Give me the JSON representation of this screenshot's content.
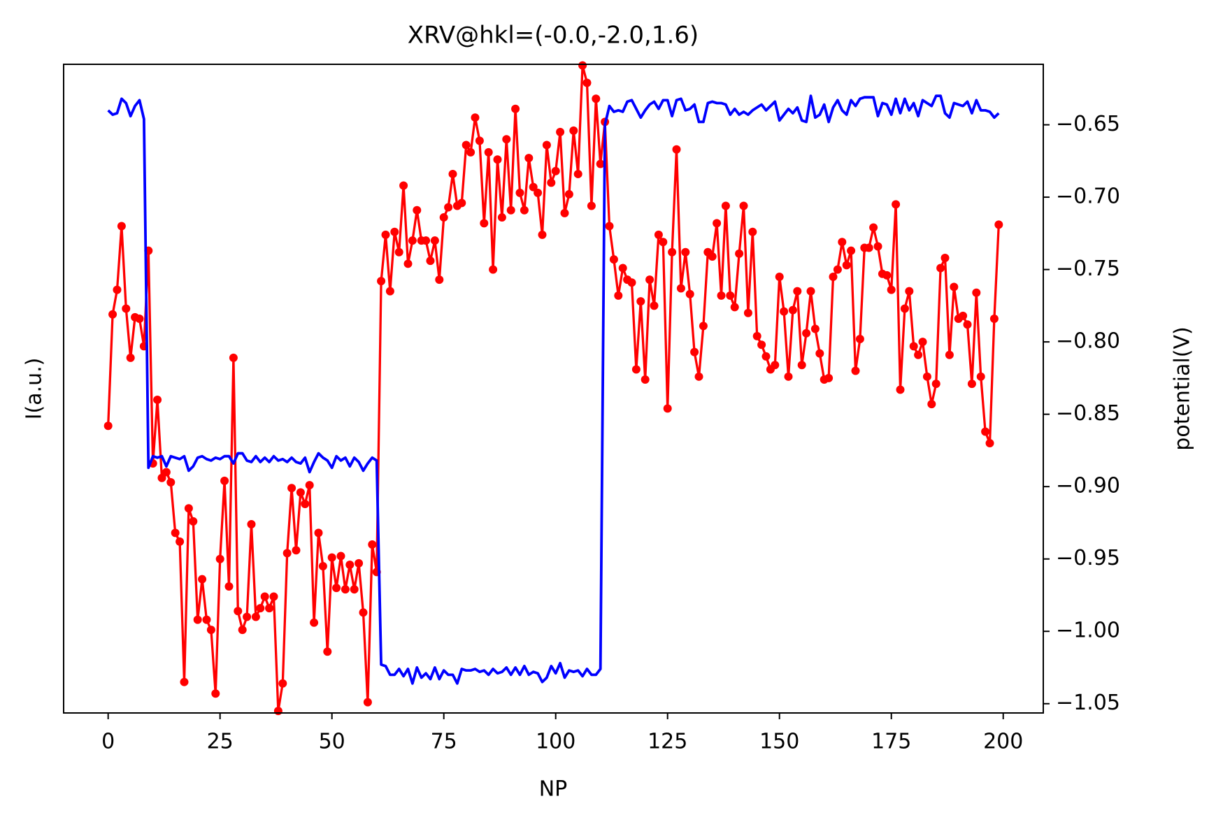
{
  "chart_data": {
    "type": "line",
    "title": "XRV@hkl=(-0.0,-2.0,1.6)",
    "xlabel": "NP",
    "ylabel": "I(a.u.)",
    "y2label": "potential(V)",
    "x": [
      0,
      1,
      2,
      3,
      4,
      5,
      6,
      7,
      8,
      9,
      10,
      11,
      12,
      13,
      14,
      15,
      16,
      17,
      18,
      19,
      20,
      21,
      22,
      23,
      24,
      25,
      26,
      27,
      28,
      29,
      30,
      31,
      32,
      33,
      34,
      35,
      36,
      37,
      38,
      39,
      40,
      41,
      42,
      43,
      44,
      45,
      46,
      47,
      48,
      49,
      50,
      51,
      52,
      53,
      54,
      55,
      56,
      57,
      58,
      59,
      60,
      61,
      62,
      63,
      64,
      65,
      66,
      67,
      68,
      69,
      70,
      71,
      72,
      73,
      74,
      75,
      76,
      77,
      78,
      79,
      80,
      81,
      82,
      83,
      84,
      85,
      86,
      87,
      88,
      89,
      90,
      91,
      92,
      93,
      94,
      95,
      96,
      97,
      98,
      99,
      100,
      101,
      102,
      103,
      104,
      105,
      106,
      107,
      108,
      109,
      110,
      111,
      112,
      113,
      114,
      115,
      116,
      117,
      118,
      119,
      120,
      121,
      122,
      123,
      124,
      125,
      126,
      127,
      128,
      129,
      130,
      131,
      132,
      133,
      134,
      135,
      136,
      137,
      138,
      139,
      140,
      141,
      142,
      143,
      144,
      145,
      146,
      147,
      148,
      149,
      150,
      151,
      152,
      153,
      154,
      155,
      156,
      157,
      158,
      159,
      160,
      161,
      162,
      163,
      164,
      165,
      166,
      167,
      168,
      169,
      170,
      171,
      172,
      173,
      174,
      175,
      176,
      177,
      178,
      179,
      180,
      181,
      182,
      183,
      184,
      185,
      186,
      187,
      188,
      189,
      190,
      191,
      192,
      193,
      194,
      195,
      196,
      197,
      198,
      199
    ],
    "series": [
      {
        "color": "#ff0000",
        "axis": "y",
        "markers": true,
        "values": [
          -0.858,
          -0.781,
          -0.764,
          -0.72,
          -0.777,
          -0.811,
          -0.783,
          -0.784,
          -0.803,
          -0.737,
          -0.884,
          -0.84,
          -0.894,
          -0.89,
          -0.897,
          -0.932,
          -0.938,
          -1.035,
          -0.915,
          -0.924,
          -0.992,
          -0.964,
          -0.992,
          -0.999,
          -1.043,
          -0.95,
          -0.896,
          -0.969,
          -0.811,
          -0.986,
          -0.999,
          -0.99,
          -0.926,
          -0.99,
          -0.984,
          -0.976,
          -0.984,
          -0.976,
          -1.055,
          -1.036,
          -0.946,
          -0.901,
          -0.944,
          -0.904,
          -0.912,
          -0.899,
          -0.994,
          -0.932,
          -0.955,
          -1.014,
          -0.949,
          -0.97,
          -0.948,
          -0.971,
          -0.954,
          -0.971,
          -0.953,
          -0.987,
          -1.049,
          -0.94,
          -0.959,
          -0.758,
          -0.726,
          -0.765,
          -0.724,
          -0.738,
          -0.692,
          -0.746,
          -0.73,
          -0.709,
          -0.73,
          -0.73,
          -0.744,
          -0.73,
          -0.757,
          -0.714,
          -0.707,
          -0.684,
          -0.706,
          -0.704,
          -0.664,
          -0.669,
          -0.645,
          -0.661,
          -0.718,
          -0.669,
          -0.75,
          -0.674,
          -0.714,
          -0.66,
          -0.709,
          -0.639,
          -0.697,
          -0.709,
          -0.673,
          -0.693,
          -0.697,
          -0.726,
          -0.664,
          -0.69,
          -0.682,
          -0.655,
          -0.711,
          -0.698,
          -0.654,
          -0.684,
          -0.609,
          -0.621,
          -0.706,
          -0.632,
          -0.677,
          -0.648,
          -0.72,
          -0.743,
          -0.768,
          -0.749,
          -0.757,
          -0.759,
          -0.819,
          -0.772,
          -0.826,
          -0.757,
          -0.775,
          -0.726,
          -0.731,
          -0.846,
          -0.738,
          -0.667,
          -0.763,
          -0.738,
          -0.767,
          -0.807,
          -0.824,
          -0.789,
          -0.738,
          -0.741,
          -0.718,
          -0.768,
          -0.706,
          -0.768,
          -0.776,
          -0.739,
          -0.706,
          -0.78,
          -0.724,
          -0.796,
          -0.802,
          -0.81,
          -0.819,
          -0.816,
          -0.755,
          -0.779,
          -0.824,
          -0.778,
          -0.765,
          -0.816,
          -0.794,
          -0.765,
          -0.791,
          -0.808,
          -0.826,
          -0.825,
          -0.755,
          -0.75,
          -0.731,
          -0.747,
          -0.737,
          -0.82,
          -0.798,
          -0.735,
          -0.735,
          -0.721,
          -0.734,
          -0.753,
          -0.754,
          -0.764,
          -0.705,
          -0.833,
          -0.777,
          -0.765,
          -0.803,
          -0.809,
          -0.8,
          -0.824,
          -0.843,
          -0.829,
          -0.749,
          -0.742,
          -0.809,
          -0.762,
          -0.784,
          -0.782,
          -0.788,
          -0.829,
          -0.766,
          -0.824,
          -0.862,
          -0.87,
          -0.784,
          -0.719
        ]
      },
      {
        "color": "#0000ff",
        "axis": "y2",
        "markers": false,
        "values": [
          -0.64,
          -0.643,
          -0.642,
          -0.632,
          -0.635,
          -0.644,
          -0.637,
          -0.633,
          -0.646,
          -0.887,
          -0.879,
          -0.88,
          -0.879,
          -0.886,
          -0.879,
          -0.88,
          -0.881,
          -0.879,
          -0.889,
          -0.886,
          -0.88,
          -0.879,
          -0.881,
          -0.882,
          -0.88,
          -0.881,
          -0.879,
          -0.879,
          -0.884,
          -0.877,
          -0.877,
          -0.882,
          -0.883,
          -0.879,
          -0.883,
          -0.88,
          -0.883,
          -0.879,
          -0.882,
          -0.881,
          -0.883,
          -0.88,
          -0.883,
          -0.884,
          -0.88,
          -0.89,
          -0.883,
          -0.877,
          -0.88,
          -0.882,
          -0.887,
          -0.879,
          -0.882,
          -0.88,
          -0.886,
          -0.88,
          -0.883,
          -0.889,
          -0.884,
          -0.88,
          -0.882,
          -1.023,
          -1.024,
          -1.03,
          -1.03,
          -1.026,
          -1.031,
          -1.026,
          -1.036,
          -1.025,
          -1.032,
          -1.029,
          -1.033,
          -1.025,
          -1.033,
          -1.027,
          -1.03,
          -1.03,
          -1.036,
          -1.026,
          -1.027,
          -1.027,
          -1.026,
          -1.028,
          -1.027,
          -1.03,
          -1.026,
          -1.029,
          -1.028,
          -1.025,
          -1.03,
          -1.025,
          -1.03,
          -1.024,
          -1.03,
          -1.028,
          -1.029,
          -1.035,
          -1.032,
          -1.024,
          -1.029,
          -1.022,
          -1.032,
          -1.027,
          -1.028,
          -1.027,
          -1.031,
          -1.026,
          -1.03,
          -1.03,
          -1.026,
          -0.65,
          -0.637,
          -0.641,
          -0.64,
          -0.641,
          -0.634,
          -0.633,
          -0.639,
          -0.645,
          -0.64,
          -0.636,
          -0.634,
          -0.639,
          -0.633,
          -0.633,
          -0.644,
          -0.633,
          -0.632,
          -0.64,
          -0.639,
          -0.636,
          -0.648,
          -0.648,
          -0.635,
          -0.634,
          -0.635,
          -0.635,
          -0.636,
          -0.643,
          -0.639,
          -0.643,
          -0.641,
          -0.643,
          -0.64,
          -0.638,
          -0.636,
          -0.64,
          -0.637,
          -0.634,
          -0.647,
          -0.643,
          -0.639,
          -0.642,
          -0.638,
          -0.647,
          -0.648,
          -0.63,
          -0.645,
          -0.643,
          -0.636,
          -0.648,
          -0.638,
          -0.633,
          -0.64,
          -0.643,
          -0.633,
          -0.637,
          -0.632,
          -0.631,
          -0.631,
          -0.631,
          -0.644,
          -0.635,
          -0.636,
          -0.643,
          -0.632,
          -0.642,
          -0.632,
          -0.64,
          -0.635,
          -0.644,
          -0.633,
          -0.635,
          -0.637,
          -0.63,
          -0.63,
          -0.642,
          -0.645,
          -0.635,
          -0.636,
          -0.637,
          -0.634,
          -0.642,
          -0.633,
          -0.64,
          -0.64,
          -0.641,
          -0.645,
          -0.642
        ]
      }
    ],
    "xlim": [
      -9.95,
      208.95
    ],
    "xticks": [
      0,
      25,
      50,
      75,
      100,
      125,
      150,
      175,
      200
    ],
    "ylim": [
      -1.0564,
      -0.6082
    ],
    "y2lim": [
      -1.0564,
      -0.6082
    ],
    "y2ticks": [
      {
        "value": -0.65,
        "label": "−0.65"
      },
      {
        "value": -0.7,
        "label": "−0.70"
      },
      {
        "value": -0.75,
        "label": "−0.75"
      },
      {
        "value": -0.8,
        "label": "−0.80"
      },
      {
        "value": -0.85,
        "label": "−0.85"
      },
      {
        "value": -0.9,
        "label": "−0.90"
      },
      {
        "value": -0.95,
        "label": "−0.95"
      },
      {
        "value": -1.0,
        "label": "−1.00"
      },
      {
        "value": -1.05,
        "label": "−1.05"
      }
    ],
    "grid": false
  }
}
